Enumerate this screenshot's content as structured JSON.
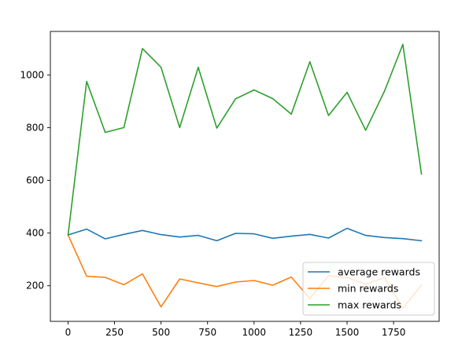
{
  "chart_data": {
    "type": "line",
    "title": "",
    "xlabel": "",
    "ylabel": "",
    "xlim": [
      -95,
      1995
    ],
    "ylim": [
      65,
      1165
    ],
    "xticks": [
      0,
      250,
      500,
      750,
      1000,
      1250,
      1500,
      1750
    ],
    "yticks": [
      200,
      400,
      600,
      800,
      1000
    ],
    "grid": false,
    "legend_position": "lower-right",
    "x": [
      0,
      100,
      200,
      300,
      400,
      500,
      600,
      700,
      800,
      900,
      1000,
      1100,
      1200,
      1300,
      1400,
      1500,
      1600,
      1700,
      1800,
      1900
    ],
    "series": [
      {
        "name": "average rewards",
        "color": "#1f77b4",
        "values": [
          393,
          415,
          378,
          395,
          410,
          394,
          385,
          391,
          371,
          399,
          397,
          380,
          388,
          395,
          381,
          418,
          391,
          383,
          379,
          371
        ]
      },
      {
        "name": "min rewards",
        "color": "#ff7f0e",
        "values": [
          393,
          236,
          232,
          204,
          245,
          120,
          226,
          211,
          197,
          214,
          220,
          202,
          233,
          152,
          238,
          231,
          206,
          231,
          115,
          202
        ]
      },
      {
        "name": "max rewards",
        "color": "#2ca02c",
        "values": [
          393,
          975,
          782,
          800,
          1100,
          1029,
          800,
          1029,
          798,
          909,
          943,
          910,
          851,
          1050,
          846,
          934,
          790,
          937,
          1116,
          624
        ]
      }
    ]
  }
}
